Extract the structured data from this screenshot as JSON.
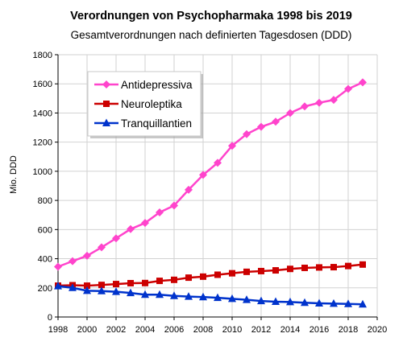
{
  "chart_data": {
    "type": "line",
    "title": "Verordnungen von Psychopharmaka 1998 bis 2019",
    "subtitle": "Gesamtverordnungen nach definierten Tagesdosen (DDD)",
    "xlabel": "",
    "ylabel": "Mio. DDD",
    "xlim": [
      1998,
      2020
    ],
    "ylim": [
      0,
      1800
    ],
    "x_ticks": [
      1998,
      2000,
      2002,
      2004,
      2006,
      2008,
      2010,
      2012,
      2014,
      2016,
      2018,
      2020
    ],
    "y_ticks": [
      0,
      200,
      400,
      600,
      800,
      1000,
      1200,
      1400,
      1600,
      1800
    ],
    "grid": true,
    "legend_position": "top-left",
    "x": [
      1998,
      1999,
      2000,
      2001,
      2002,
      2003,
      2004,
      2005,
      2006,
      2007,
      2008,
      2009,
      2010,
      2011,
      2012,
      2013,
      2014,
      2015,
      2016,
      2017,
      2018,
      2019
    ],
    "series": [
      {
        "name": "Antidepressiva",
        "color": "#ff44cc",
        "marker": "diamond",
        "values": [
          345,
          383,
          420,
          478,
          540,
          603,
          645,
          718,
          765,
          873,
          975,
          1058,
          1175,
          1255,
          1305,
          1340,
          1400,
          1445,
          1470,
          1490,
          1565,
          1610
        ]
      },
      {
        "name": "Neuroleptika",
        "color": "#cc0000",
        "marker": "square",
        "values": [
          215,
          218,
          215,
          220,
          226,
          232,
          233,
          248,
          255,
          270,
          277,
          290,
          300,
          310,
          315,
          320,
          330,
          337,
          340,
          342,
          350,
          360
        ]
      },
      {
        "name": "Tranquillantien",
        "color": "#0033cc",
        "marker": "triangle",
        "values": [
          212,
          200,
          180,
          178,
          173,
          165,
          153,
          153,
          145,
          140,
          137,
          132,
          125,
          118,
          110,
          105,
          103,
          98,
          94,
          92,
          90,
          87
        ]
      }
    ]
  }
}
